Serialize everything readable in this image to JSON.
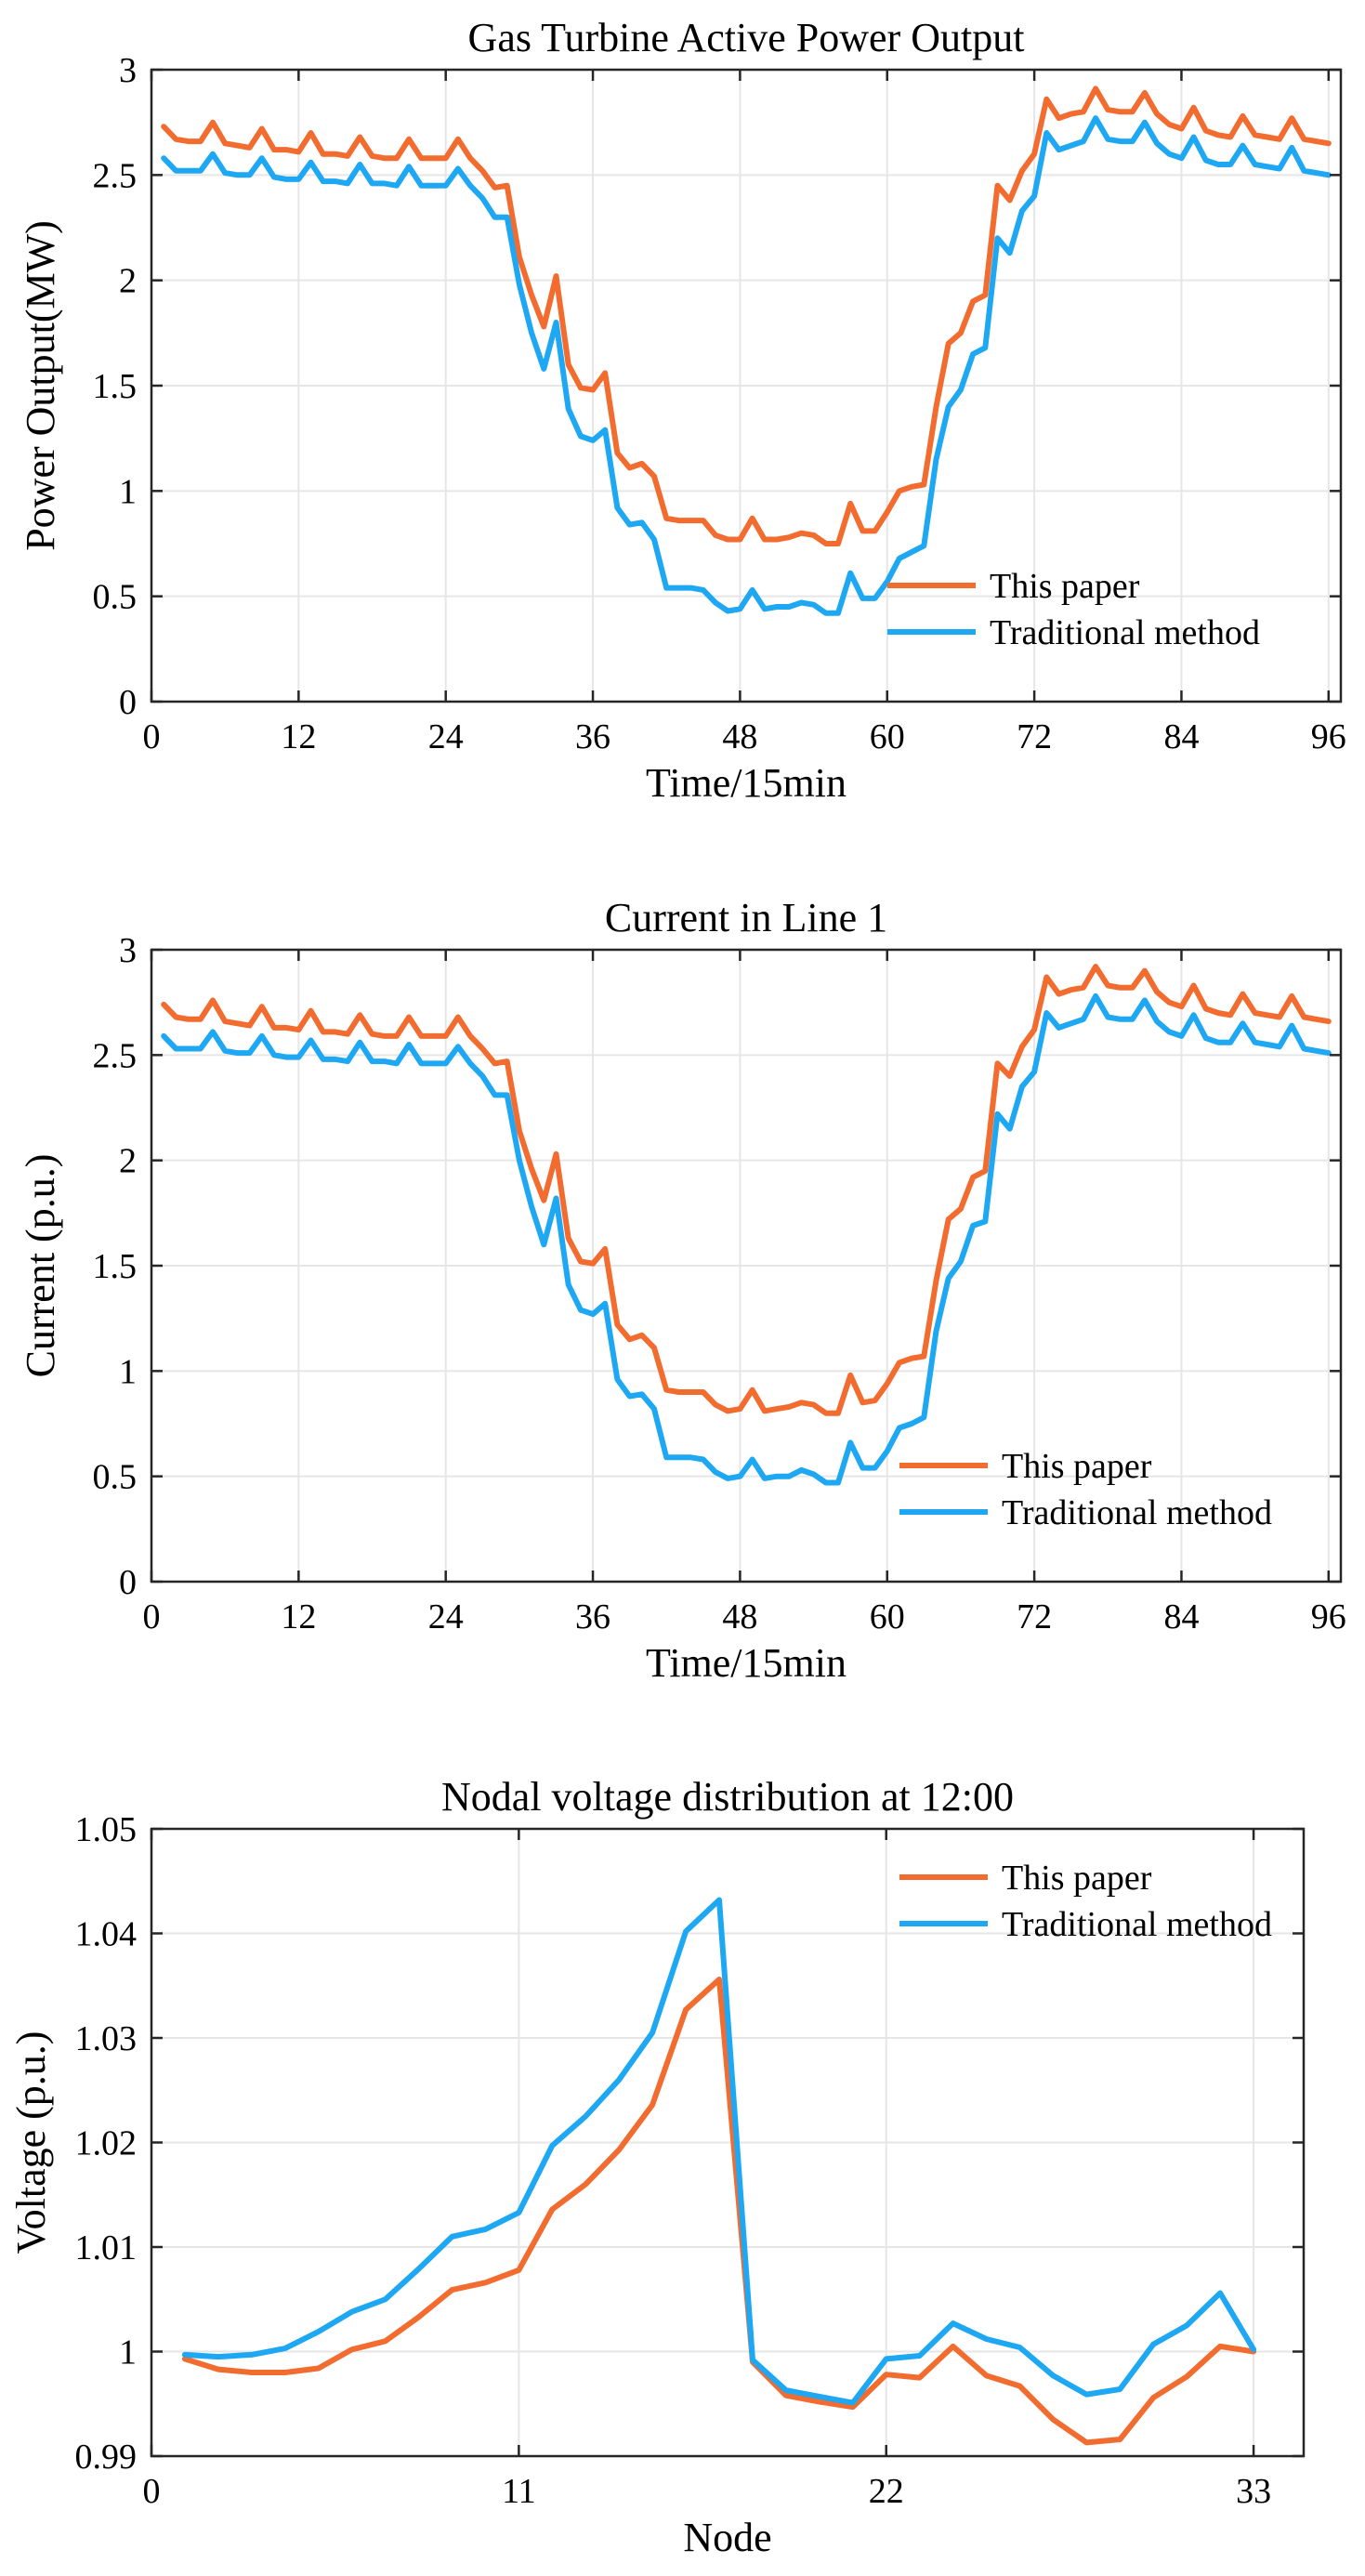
{
  "colors": {
    "this_paper": "#f26c30",
    "traditional": "#1ea7f2"
  },
  "chart_data": [
    {
      "type": "line",
      "title": "Gas Turbine Active Power Output",
      "xlabel": "Time/15min",
      "ylabel": "Power Output(MW)",
      "xlim": [
        0,
        97
      ],
      "ylim": [
        0,
        3
      ],
      "xticks": [
        0,
        12,
        24,
        36,
        48,
        60,
        72,
        84,
        96
      ],
      "xtick_labels": [
        "0",
        "12",
        "24",
        "36",
        "48",
        "60",
        "72",
        "84",
        "96"
      ],
      "yticks": [
        0,
        0.5,
        1,
        1.5,
        2,
        2.5,
        3
      ],
      "ytick_labels": [
        "0",
        "0.5",
        "1",
        "1.5",
        "2",
        "2.5",
        "3"
      ],
      "grid": true,
      "legend": "bottom-right",
      "x": [
        1,
        2,
        3,
        4,
        5,
        6,
        7,
        8,
        9,
        10,
        11,
        12,
        13,
        14,
        15,
        16,
        17,
        18,
        19,
        20,
        21,
        22,
        23,
        24,
        25,
        26,
        27,
        28,
        29,
        30,
        31,
        32,
        33,
        34,
        35,
        36,
        37,
        38,
        39,
        40,
        41,
        42,
        43,
        44,
        45,
        46,
        47,
        48,
        49,
        50,
        51,
        52,
        53,
        54,
        55,
        56,
        57,
        58,
        59,
        60,
        61,
        62,
        63,
        64,
        65,
        66,
        67,
        68,
        69,
        70,
        71,
        72,
        73,
        74,
        75,
        76,
        77,
        78,
        79,
        80,
        81,
        82,
        83,
        84,
        85,
        86,
        87,
        88,
        89,
        90,
        91,
        92,
        93,
        94,
        95,
        96
      ],
      "series": [
        {
          "name": "This paper",
          "color_key": "this_paper",
          "values": [
            2.73,
            2.67,
            2.66,
            2.66,
            2.75,
            2.65,
            2.64,
            2.63,
            2.72,
            2.62,
            2.62,
            2.61,
            2.7,
            2.6,
            2.6,
            2.59,
            2.68,
            2.59,
            2.58,
            2.58,
            2.67,
            2.58,
            2.58,
            2.58,
            2.67,
            2.58,
            2.52,
            2.44,
            2.45,
            2.11,
            1.93,
            1.78,
            2.02,
            1.6,
            1.49,
            1.48,
            1.56,
            1.18,
            1.11,
            1.13,
            1.07,
            0.87,
            0.86,
            0.86,
            0.86,
            0.79,
            0.77,
            0.77,
            0.87,
            0.77,
            0.77,
            0.78,
            0.8,
            0.79,
            0.75,
            0.75,
            0.94,
            0.81,
            0.81,
            0.9,
            1.0,
            1.02,
            1.03,
            1.4,
            1.7,
            1.75,
            1.9,
            1.93,
            2.45,
            2.38,
            2.52,
            2.6,
            2.86,
            2.77,
            2.79,
            2.8,
            2.91,
            2.81,
            2.8,
            2.8,
            2.89,
            2.79,
            2.74,
            2.72,
            2.82,
            2.71,
            2.69,
            2.68,
            2.78,
            2.69,
            2.68,
            2.67,
            2.77,
            2.67,
            2.66,
            2.65
          ]
        },
        {
          "name": "Traditional method",
          "color_key": "traditional",
          "values": [
            2.58,
            2.52,
            2.52,
            2.52,
            2.6,
            2.51,
            2.5,
            2.5,
            2.58,
            2.49,
            2.48,
            2.48,
            2.56,
            2.47,
            2.47,
            2.46,
            2.55,
            2.46,
            2.46,
            2.45,
            2.54,
            2.45,
            2.45,
            2.45,
            2.53,
            2.45,
            2.39,
            2.3,
            2.3,
            1.98,
            1.75,
            1.58,
            1.8,
            1.39,
            1.26,
            1.24,
            1.29,
            0.92,
            0.84,
            0.85,
            0.77,
            0.54,
            0.54,
            0.54,
            0.53,
            0.47,
            0.43,
            0.44,
            0.53,
            0.44,
            0.45,
            0.45,
            0.47,
            0.46,
            0.42,
            0.42,
            0.61,
            0.49,
            0.49,
            0.57,
            0.68,
            0.71,
            0.74,
            1.15,
            1.4,
            1.48,
            1.65,
            1.68,
            2.2,
            2.13,
            2.33,
            2.4,
            2.7,
            2.62,
            2.64,
            2.66,
            2.77,
            2.67,
            2.66,
            2.66,
            2.75,
            2.65,
            2.6,
            2.58,
            2.68,
            2.57,
            2.55,
            2.55,
            2.64,
            2.55,
            2.54,
            2.53,
            2.63,
            2.52,
            2.51,
            2.5
          ]
        }
      ]
    },
    {
      "type": "line",
      "title": "Current in Line 1",
      "xlabel": "Time/15min",
      "ylabel": "Current (p.u.)",
      "xlim": [
        0,
        97
      ],
      "ylim": [
        0,
        3
      ],
      "xticks": [
        0,
        12,
        24,
        36,
        48,
        60,
        72,
        84,
        96
      ],
      "xtick_labels": [
        "0",
        "12",
        "24",
        "36",
        "48",
        "60",
        "72",
        "84",
        "96"
      ],
      "yticks": [
        0,
        0.5,
        1,
        1.5,
        2,
        2.5,
        3
      ],
      "ytick_labels": [
        "0",
        "0.5",
        "1",
        "1.5",
        "2",
        "2.5",
        "3"
      ],
      "grid": true,
      "legend": "bottom-right",
      "x": [
        1,
        2,
        3,
        4,
        5,
        6,
        7,
        8,
        9,
        10,
        11,
        12,
        13,
        14,
        15,
        16,
        17,
        18,
        19,
        20,
        21,
        22,
        23,
        24,
        25,
        26,
        27,
        28,
        29,
        30,
        31,
        32,
        33,
        34,
        35,
        36,
        37,
        38,
        39,
        40,
        41,
        42,
        43,
        44,
        45,
        46,
        47,
        48,
        49,
        50,
        51,
        52,
        53,
        54,
        55,
        56,
        57,
        58,
        59,
        60,
        61,
        62,
        63,
        64,
        65,
        66,
        67,
        68,
        69,
        70,
        71,
        72,
        73,
        74,
        75,
        76,
        77,
        78,
        79,
        80,
        81,
        82,
        83,
        84,
        85,
        86,
        87,
        88,
        89,
        90,
        91,
        92,
        93,
        94,
        95,
        96
      ],
      "series": [
        {
          "name": "This paper",
          "color_key": "this_paper",
          "values": [
            2.74,
            2.68,
            2.67,
            2.67,
            2.76,
            2.66,
            2.65,
            2.64,
            2.73,
            2.63,
            2.63,
            2.62,
            2.71,
            2.61,
            2.61,
            2.6,
            2.69,
            2.6,
            2.59,
            2.59,
            2.68,
            2.59,
            2.59,
            2.59,
            2.68,
            2.59,
            2.53,
            2.46,
            2.47,
            2.14,
            1.96,
            1.81,
            2.03,
            1.63,
            1.52,
            1.51,
            1.58,
            1.22,
            1.15,
            1.17,
            1.11,
            0.91,
            0.9,
            0.9,
            0.9,
            0.84,
            0.81,
            0.82,
            0.91,
            0.81,
            0.82,
            0.83,
            0.85,
            0.84,
            0.8,
            0.8,
            0.98,
            0.85,
            0.86,
            0.94,
            1.04,
            1.06,
            1.07,
            1.43,
            1.72,
            1.77,
            1.92,
            1.95,
            2.46,
            2.4,
            2.54,
            2.62,
            2.87,
            2.79,
            2.81,
            2.82,
            2.92,
            2.83,
            2.82,
            2.82,
            2.9,
            2.8,
            2.75,
            2.73,
            2.83,
            2.72,
            2.7,
            2.69,
            2.79,
            2.7,
            2.69,
            2.68,
            2.78,
            2.68,
            2.67,
            2.66
          ]
        },
        {
          "name": "Traditional method",
          "color_key": "traditional",
          "values": [
            2.59,
            2.53,
            2.53,
            2.53,
            2.61,
            2.52,
            2.51,
            2.51,
            2.59,
            2.5,
            2.49,
            2.49,
            2.57,
            2.48,
            2.48,
            2.47,
            2.56,
            2.47,
            2.47,
            2.46,
            2.55,
            2.46,
            2.46,
            2.46,
            2.54,
            2.46,
            2.4,
            2.31,
            2.31,
            2.0,
            1.78,
            1.6,
            1.82,
            1.41,
            1.29,
            1.27,
            1.32,
            0.96,
            0.88,
            0.89,
            0.82,
            0.59,
            0.59,
            0.59,
            0.58,
            0.52,
            0.49,
            0.5,
            0.58,
            0.49,
            0.5,
            0.5,
            0.53,
            0.51,
            0.47,
            0.47,
            0.66,
            0.54,
            0.54,
            0.62,
            0.73,
            0.75,
            0.78,
            1.19,
            1.44,
            1.52,
            1.69,
            1.71,
            2.22,
            2.15,
            2.35,
            2.42,
            2.7,
            2.63,
            2.65,
            2.67,
            2.78,
            2.68,
            2.67,
            2.67,
            2.76,
            2.66,
            2.61,
            2.59,
            2.69,
            2.58,
            2.56,
            2.56,
            2.65,
            2.56,
            2.55,
            2.54,
            2.64,
            2.53,
            2.52,
            2.51
          ]
        }
      ]
    },
    {
      "type": "line",
      "title": "Nodal voltage distribution at 12:00",
      "xlabel": "Node",
      "ylabel": "Voltage (p.u.)",
      "xlim": [
        0,
        34.5
      ],
      "ylim": [
        0.99,
        1.05
      ],
      "xticks": [
        0,
        11,
        22,
        33
      ],
      "xtick_labels": [
        "0",
        "11",
        "22",
        "33"
      ],
      "yticks": [
        0.99,
        1.0,
        1.01,
        1.02,
        1.03,
        1.04,
        1.05
      ],
      "ytick_labels": [
        "0.99",
        "1",
        "1.01",
        "1.02",
        "1.03",
        "1.04",
        "1.05"
      ],
      "grid": true,
      "legend": "top-right",
      "x": [
        1,
        2,
        3,
        4,
        5,
        6,
        7,
        8,
        9,
        10,
        11,
        12,
        13,
        14,
        15,
        16,
        17,
        18,
        19,
        20,
        21,
        22,
        23,
        24,
        25,
        26,
        27,
        28,
        29,
        30,
        31,
        32,
        33
      ],
      "series": [
        {
          "name": "This paper",
          "color_key": "this_paper",
          "values": [
            0.9993,
            0.9983,
            0.998,
            0.998,
            0.9984,
            1.0002,
            1.001,
            1.0033,
            1.0059,
            1.0066,
            1.0078,
            1.0136,
            1.016,
            1.0193,
            1.0236,
            1.0327,
            1.0356,
            0.999,
            0.9958,
            0.9952,
            0.9947,
            0.9978,
            0.9975,
            1.0005,
            0.9977,
            0.9967,
            0.9935,
            0.9913,
            0.9916,
            0.9956,
            0.9976,
            1.0005,
            1.0
          ]
        },
        {
          "name": "Traditional method",
          "color_key": "traditional",
          "values": [
            0.9997,
            0.9995,
            0.9997,
            1.0003,
            1.0019,
            1.0038,
            1.005,
            1.0079,
            1.011,
            1.0117,
            1.0133,
            1.0197,
            1.0225,
            1.026,
            1.0305,
            1.0402,
            1.0432,
            0.9992,
            0.9963,
            0.9957,
            0.9951,
            0.9993,
            0.9996,
            1.0027,
            1.0012,
            1.0004,
            0.9977,
            0.9959,
            0.9964,
            1.0007,
            1.0025,
            1.0056,
            1.0002
          ]
        }
      ]
    }
  ]
}
